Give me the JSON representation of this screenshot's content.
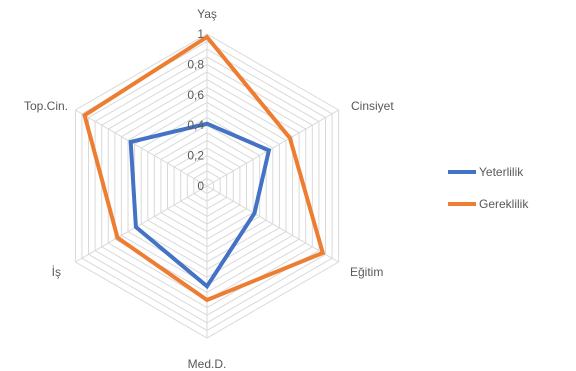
{
  "chart_data": {
    "type": "radar",
    "categories": [
      "Yaş",
      "Cinsiyet",
      "Eğitim",
      "Med.D.",
      "İş",
      "Top.Cin."
    ],
    "series": [
      {
        "name": "Yeterlilik",
        "color": "#4472C4",
        "values": [
          0.41,
          0.47,
          0.36,
          0.66,
          0.54,
          0.58
        ]
      },
      {
        "name": "Gereklilik",
        "color": "#ED7D31",
        "values": [
          0.98,
          0.63,
          0.88,
          0.75,
          0.68,
          0.93
        ]
      }
    ],
    "rlim": [
      0,
      1
    ],
    "ticks": [
      "0",
      "0,2",
      "0,4",
      "0,6",
      "0,8",
      "1"
    ],
    "grid": true,
    "legend": "right",
    "grid_color": "#d9d9d9"
  }
}
